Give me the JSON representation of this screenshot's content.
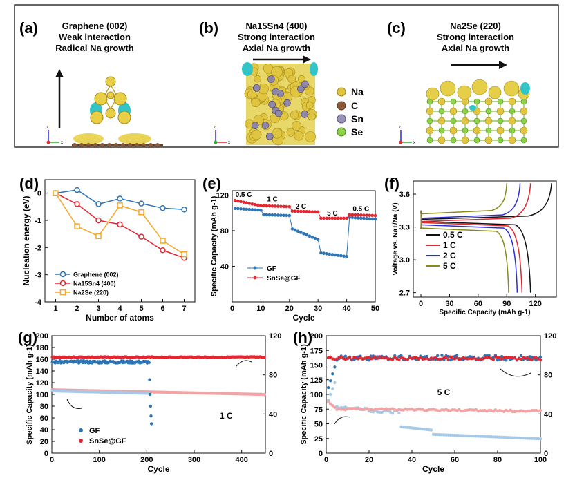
{
  "top_row": {
    "panels": [
      {
        "letter": "(a)",
        "lines": [
          "Graphene (002)",
          "Weak interaction",
          "Radical Na growth"
        ]
      },
      {
        "letter": "(b)",
        "lines": [
          "Na15Sn4 (400)",
          "Strong interaction",
          "Axial Na growth"
        ]
      },
      {
        "letter": "(c)",
        "lines": [
          "Na2Se (220)",
          "Strong interaction",
          "Axial Na growth"
        ]
      }
    ],
    "legend": [
      {
        "label": "Na",
        "color": "#e0c640"
      },
      {
        "label": "C",
        "color": "#8a5a3a"
      },
      {
        "label": "Sn",
        "color": "#9a92b8"
      },
      {
        "label": "Se",
        "color": "#8fd24a"
      }
    ],
    "axis_letters": [
      "z",
      "x"
    ]
  },
  "chart_data": [
    {
      "id": "d",
      "letter": "(d)",
      "type": "line",
      "xlabel": "Number of atoms",
      "ylabel": "Nucleation energy (eV)",
      "xlim": [
        0.5,
        7.5
      ],
      "ylim": [
        -4,
        0.5
      ],
      "xticks": [
        1,
        2,
        3,
        4,
        5,
        6,
        7
      ],
      "yticks": [
        0,
        -1,
        -2,
        -3,
        -4
      ],
      "series": [
        {
          "name": "Graphene (002)",
          "color": "#2e75b6",
          "x": [
            1,
            2,
            3,
            4,
            5,
            6,
            7
          ],
          "values": [
            0,
            0.12,
            -0.4,
            -0.2,
            -0.38,
            -0.55,
            -0.6
          ]
        },
        {
          "name": "Na15Sn4 (400)",
          "color": "#e3262f",
          "x": [
            1,
            2,
            3,
            4,
            5,
            6,
            7
          ],
          "values": [
            0,
            -0.4,
            -1.0,
            -1.15,
            -1.6,
            -2.1,
            -2.38
          ]
        },
        {
          "name": "Na2Se (220)",
          "color": "#f5a623",
          "x": [
            1,
            2,
            3,
            4,
            5,
            6,
            7
          ],
          "values": [
            0,
            -1.22,
            -1.58,
            -0.45,
            -0.7,
            -1.75,
            -2.25
          ]
        }
      ]
    },
    {
      "id": "e",
      "letter": "(e)",
      "type": "scatter",
      "xlabel": "Cycle",
      "ylabel": "Specific Capacity (mAh g-1)",
      "xlim": [
        0,
        50
      ],
      "ylim": [
        0,
        125
      ],
      "xticks": [
        0,
        10,
        20,
        30,
        40,
        50
      ],
      "yticks": [
        40,
        80,
        120
      ],
      "rate_labels": [
        {
          "text": "0.5 C",
          "x": 4,
          "y": 118
        },
        {
          "text": "1 C",
          "x": 14,
          "y": 113
        },
        {
          "text": "2 C",
          "x": 24,
          "y": 105
        },
        {
          "text": "5 C",
          "x": 35,
          "y": 97
        },
        {
          "text": "0.5 C",
          "x": 45,
          "y": 102
        }
      ],
      "series": [
        {
          "name": "GF",
          "color": "#2e75b6",
          "segments": [
            [
              1,
              10,
              105,
              103
            ],
            [
              11,
              20,
              98,
              97
            ],
            [
              21,
              30,
              82,
              70
            ],
            [
              31,
              40,
              55,
              51
            ],
            [
              41,
              50,
              95,
              93
            ]
          ]
        },
        {
          "name": "SnSe@GF",
          "color": "#e3262f",
          "segments": [
            [
              1,
              10,
              114,
              108
            ],
            [
              11,
              20,
              108,
              107
            ],
            [
              21,
              30,
              102,
              101
            ],
            [
              31,
              40,
              94,
              94
            ],
            [
              41,
              50,
              98,
              97
            ]
          ]
        }
      ]
    },
    {
      "id": "f",
      "letter": "(f)",
      "type": "line",
      "xlabel": "Specific Capacity (mAh g-1)",
      "ylabel": "Voltage vs. Na+/Na (V)",
      "xlim": [
        -8,
        142
      ],
      "ylim": [
        2.66,
        3.72
      ],
      "xticks": [
        0,
        30,
        60,
        90,
        120
      ],
      "yticks": [
        2.7,
        3.0,
        3.3,
        3.6
      ],
      "series": [
        {
          "name": "0.5 C",
          "color": "#111111",
          "charge_end": 137,
          "discharge_end": 115,
          "plateau_c": 3.39,
          "plateau_d": 3.33
        },
        {
          "name": "1 C",
          "color": "#e3262f",
          "charge_end": 115,
          "discharge_end": 106,
          "plateau_c": 3.37,
          "plateau_d": 3.32
        },
        {
          "name": "2 C",
          "color": "#2b2bdc",
          "charge_end": 104,
          "discharge_end": 101,
          "plateau_c": 3.4,
          "plateau_d": 3.3
        },
        {
          "name": "5 C",
          "color": "#8a8a1a",
          "charge_end": 90,
          "discharge_end": 92,
          "plateau_c": 3.44,
          "plateau_d": 3.27
        }
      ]
    },
    {
      "id": "g",
      "letter": "(g)",
      "type": "scatter",
      "xlabel": "Cycle",
      "ylabel": "Specific Capacity (mAh g-1)",
      "xlim": [
        0,
        450
      ],
      "ylim": [
        0,
        200
      ],
      "y2lim": [
        0,
        120
      ],
      "xticks": [
        0,
        100,
        200,
        300,
        400
      ],
      "yticks": [
        0,
        20,
        40,
        60,
        80,
        100,
        120,
        140,
        160,
        180,
        200
      ],
      "y2ticks": [
        0,
        40,
        80,
        120
      ],
      "annotation": "1 C",
      "series": [
        {
          "name": "GF",
          "color": "#2e75b6"
        },
        {
          "name": "SnSe@GF",
          "color": "#e3262f"
        }
      ]
    },
    {
      "id": "h",
      "letter": "(h)",
      "type": "scatter",
      "xlabel": "Cycle",
      "ylabel": "Specific Capacity (mAh g-1)",
      "xlim": [
        0,
        100
      ],
      "ylim": [
        0,
        200
      ],
      "y2lim": [
        0,
        120
      ],
      "xticks": [
        0,
        20,
        40,
        60,
        80,
        100
      ],
      "yticks": [
        0,
        25,
        50,
        75,
        100,
        125,
        150,
        175,
        200
      ],
      "y2ticks": [
        0,
        40,
        80,
        120
      ],
      "annotation": "5 C"
    }
  ]
}
